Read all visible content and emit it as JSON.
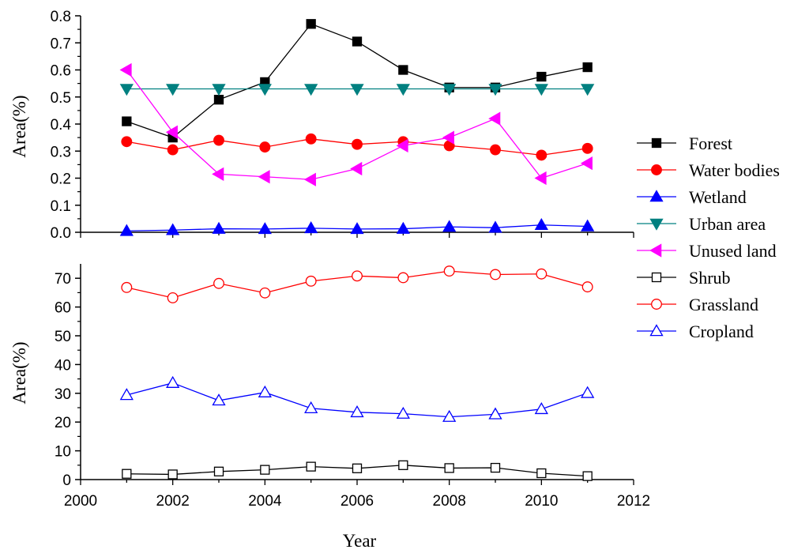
{
  "chart_data": [
    {
      "type": "line",
      "title": "",
      "xlabel": "",
      "ylabel": "Area(%)",
      "xlim": [
        2000,
        2012
      ],
      "ylim": [
        0,
        0.8
      ],
      "yticks": [
        "0.0",
        "0.1",
        "0.2",
        "0.3",
        "0.4",
        "0.5",
        "0.6",
        "0.7",
        "0.8"
      ],
      "grid": false,
      "legend": "right",
      "series": [
        {
          "name": "Forest",
          "color": "#000000",
          "marker": "square",
          "filled": true,
          "x": [
            2001,
            2002,
            2003,
            2004,
            2005,
            2006,
            2007,
            2008,
            2009,
            2010,
            2011
          ],
          "values": [
            0.41,
            0.35,
            0.49,
            0.555,
            0.77,
            0.705,
            0.6,
            0.535,
            0.535,
            0.575,
            0.61
          ]
        },
        {
          "name": "Water bodies",
          "color": "#ff0000",
          "marker": "circle",
          "filled": true,
          "x": [
            2001,
            2002,
            2003,
            2004,
            2005,
            2006,
            2007,
            2008,
            2009,
            2010,
            2011
          ],
          "values": [
            0.335,
            0.305,
            0.34,
            0.315,
            0.345,
            0.325,
            0.335,
            0.32,
            0.305,
            0.285,
            0.31
          ]
        },
        {
          "name": "Wetland",
          "color": "#0000ff",
          "marker": "triangle-up",
          "filled": true,
          "x": [
            2001,
            2002,
            2003,
            2004,
            2005,
            2006,
            2007,
            2008,
            2009,
            2010,
            2011
          ],
          "values": [
            0.005,
            0.008,
            0.013,
            0.012,
            0.015,
            0.012,
            0.013,
            0.02,
            0.017,
            0.027,
            0.022
          ]
        },
        {
          "name": "Urban area",
          "color": "#008080",
          "marker": "triangle-down",
          "filled": true,
          "x": [
            2001,
            2002,
            2003,
            2004,
            2005,
            2006,
            2007,
            2008,
            2009,
            2010,
            2011
          ],
          "values": [
            0.53,
            0.53,
            0.53,
            0.53,
            0.53,
            0.53,
            0.53,
            0.53,
            0.53,
            0.53,
            0.53
          ]
        },
        {
          "name": "Unused land",
          "color": "#ff00ff",
          "marker": "triangle-left",
          "filled": true,
          "x": [
            2001,
            2002,
            2003,
            2004,
            2005,
            2006,
            2007,
            2008,
            2009,
            2010,
            2011
          ],
          "values": [
            0.6,
            0.37,
            0.215,
            0.205,
            0.195,
            0.235,
            0.32,
            0.35,
            0.42,
            0.2,
            0.255
          ]
        }
      ]
    },
    {
      "type": "line",
      "title": "",
      "xlabel": "Year",
      "ylabel": "Area(%)",
      "xlim": [
        2000,
        2012
      ],
      "ylim": [
        0,
        75
      ],
      "xticks": [
        "2000",
        "2002",
        "2004",
        "2006",
        "2008",
        "2010",
        "2012"
      ],
      "yticks": [
        "0",
        "10",
        "20",
        "30",
        "40",
        "50",
        "60",
        "70"
      ],
      "grid": false,
      "legend": "right",
      "series": [
        {
          "name": "Shrub",
          "color": "#000000",
          "marker": "square",
          "filled": false,
          "x": [
            2001,
            2002,
            2003,
            2004,
            2005,
            2006,
            2007,
            2008,
            2009,
            2010,
            2011
          ],
          "values": [
            2.0,
            1.8,
            2.8,
            3.4,
            4.5,
            3.9,
            5.0,
            4.0,
            4.1,
            2.2,
            1.2
          ]
        },
        {
          "name": "Grassland",
          "color": "#ff0000",
          "marker": "circle",
          "filled": false,
          "x": [
            2001,
            2002,
            2003,
            2004,
            2005,
            2006,
            2007,
            2008,
            2009,
            2010,
            2011
          ],
          "values": [
            66.8,
            63.2,
            68.2,
            64.9,
            69.0,
            70.8,
            70.2,
            72.5,
            71.3,
            71.5,
            67.0
          ]
        },
        {
          "name": "Cropland",
          "color": "#0000ff",
          "marker": "triangle-up",
          "filled": false,
          "x": [
            2001,
            2002,
            2003,
            2004,
            2005,
            2006,
            2007,
            2008,
            2009,
            2010,
            2011
          ],
          "values": [
            29.4,
            33.6,
            27.5,
            30.3,
            24.8,
            23.4,
            22.9,
            21.8,
            22.7,
            24.5,
            30.1
          ]
        }
      ]
    }
  ]
}
